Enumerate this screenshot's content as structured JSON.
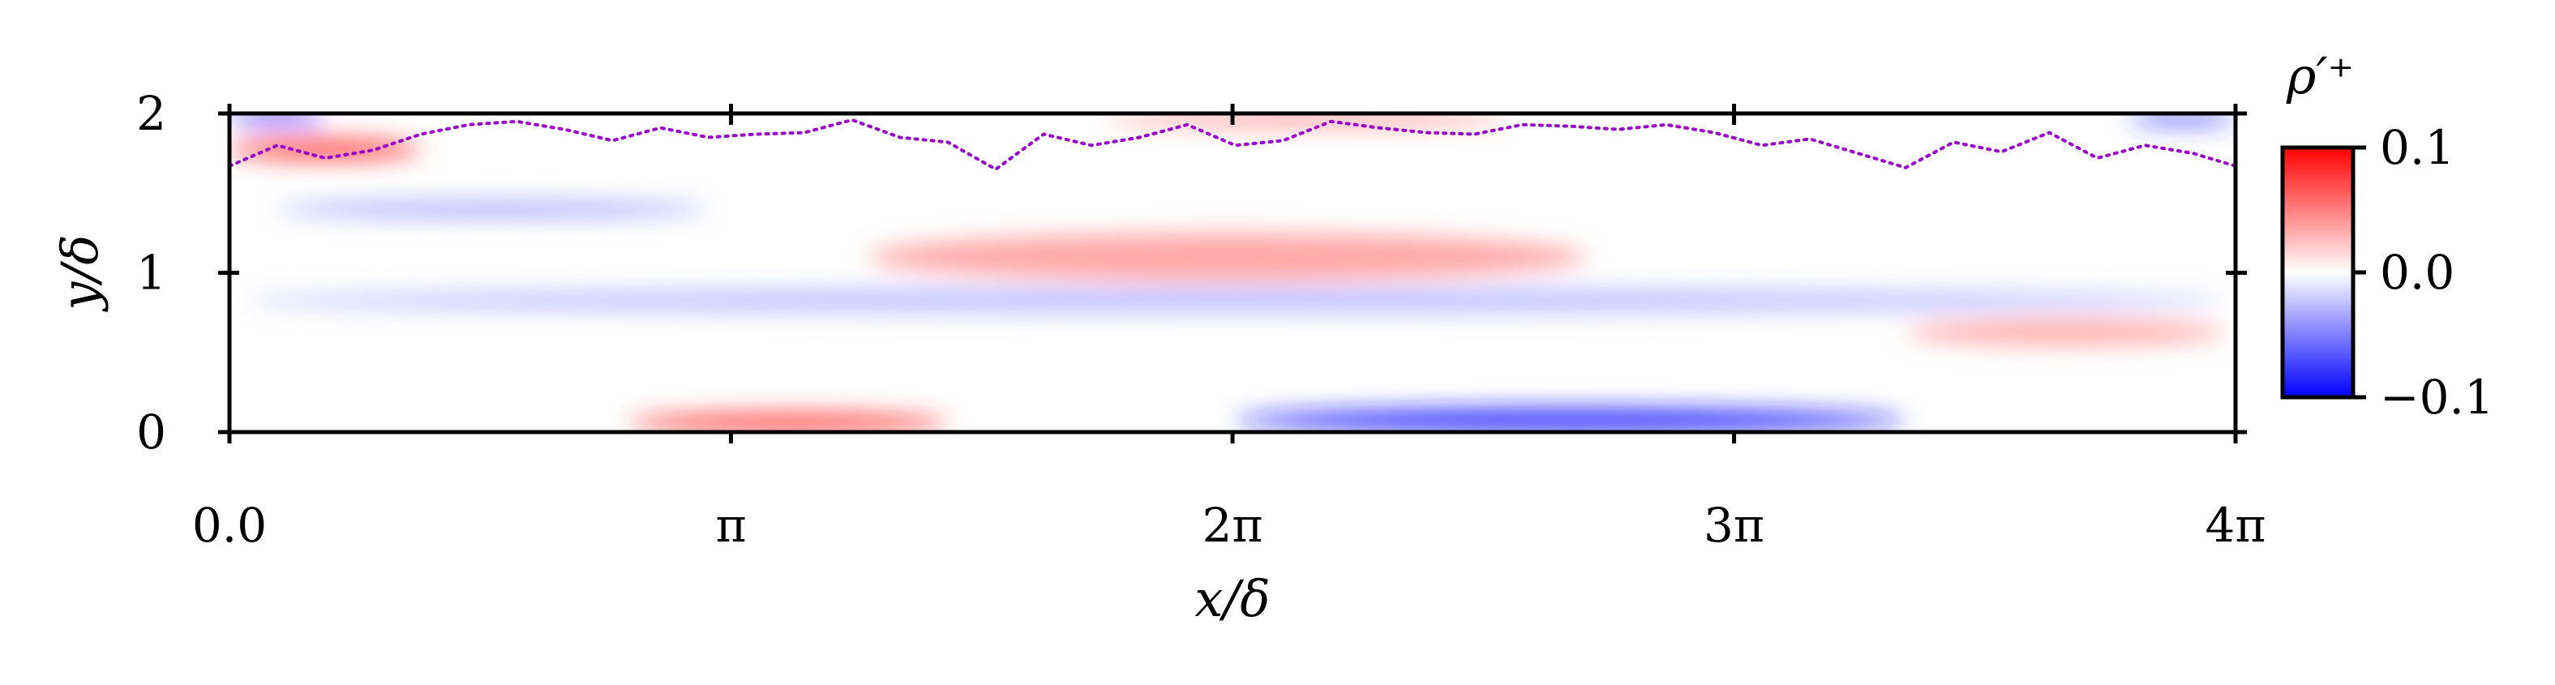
{
  "chart_data": {
    "type": "heatmap",
    "title": "",
    "xlabel": "x/δ",
    "ylabel": "y/δ",
    "x_range": [
      0,
      12.566
    ],
    "y_range": [
      0,
      2
    ],
    "x_ticks": [
      {
        "value": 0,
        "label": "0.0"
      },
      {
        "value": 3.1416,
        "label": "π"
      },
      {
        "value": 6.2832,
        "label": "2π"
      },
      {
        "value": 9.4248,
        "label": "3π"
      },
      {
        "value": 12.566,
        "label": "4π"
      }
    ],
    "y_ticks": [
      {
        "value": 0,
        "label": "0"
      },
      {
        "value": 1,
        "label": "1"
      },
      {
        "value": 2,
        "label": "2"
      }
    ],
    "colorbar": {
      "label": "ρ′⁺",
      "colormap": "bwr",
      "colors": {
        "low": "#0000ff",
        "mid": "#ffffff",
        "high": "#ff0000"
      },
      "range": [
        -0.1,
        0.1
      ],
      "ticks": [
        {
          "value": 0.1,
          "label": "0.1"
        },
        {
          "value": 0.0,
          "label": "0.0"
        },
        {
          "value": -0.1,
          "label": "−0.1"
        }
      ]
    },
    "field_note_values": {
      "regions": [
        {
          "x": [
            0.0,
            0.6
          ],
          "y": [
            1.93,
            2.0
          ],
          "value": -0.09
        },
        {
          "x": [
            11.9,
            12.566
          ],
          "y": [
            1.93,
            2.0
          ],
          "value": -0.08
        },
        {
          "x": [
            0.0,
            1.2
          ],
          "y": [
            1.7,
            1.85
          ],
          "value": 0.07
        },
        {
          "x": [
            5.5,
            8.0
          ],
          "y": [
            1.92,
            2.0
          ],
          "value": 0.05
        },
        {
          "x": [
            0.3,
            3.0
          ],
          "y": [
            1.35,
            1.45
          ],
          "value": -0.04
        },
        {
          "x": [
            4.0,
            8.5
          ],
          "y": [
            0.95,
            1.25
          ],
          "value": 0.04
        },
        {
          "x": [
            0.1,
            12.5
          ],
          "y": [
            0.75,
            0.9
          ],
          "value": -0.03
        },
        {
          "x": [
            2.5,
            4.5
          ],
          "y": [
            0.0,
            0.12
          ],
          "value": 0.08
        },
        {
          "x": [
            6.3,
            10.5
          ],
          "y": [
            0.0,
            0.15
          ],
          "value": -0.09
        },
        {
          "x": [
            10.5,
            12.5
          ],
          "y": [
            0.55,
            0.7
          ],
          "value": 0.04
        }
      ]
    },
    "dotted_line": {
      "color": "#9900cc",
      "style": "dotted",
      "x": [
        0.0,
        0.3,
        0.6,
        0.9,
        1.2,
        1.5,
        1.8,
        2.1,
        2.4,
        2.7,
        3.0,
        3.3,
        3.6,
        3.9,
        4.2,
        4.5,
        4.8,
        5.1,
        5.4,
        5.7,
        6.0,
        6.3,
        6.6,
        6.9,
        7.2,
        7.5,
        7.8,
        8.1,
        8.4,
        8.7,
        9.0,
        9.3,
        9.6,
        9.9,
        10.2,
        10.5,
        10.8,
        11.1,
        11.4,
        11.7,
        12.0,
        12.3,
        12.566
      ],
      "y": [
        1.67,
        1.8,
        1.72,
        1.77,
        1.87,
        1.93,
        1.95,
        1.9,
        1.83,
        1.91,
        1.85,
        1.87,
        1.88,
        1.96,
        1.85,
        1.82,
        1.65,
        1.87,
        1.8,
        1.85,
        1.93,
        1.8,
        1.83,
        1.95,
        1.91,
        1.88,
        1.87,
        1.93,
        1.92,
        1.9,
        1.93,
        1.88,
        1.8,
        1.84,
        1.75,
        1.66,
        1.82,
        1.76,
        1.88,
        1.72,
        1.8,
        1.75,
        1.67
      ]
    }
  }
}
